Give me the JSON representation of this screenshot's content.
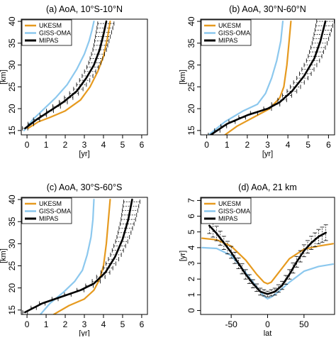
{
  "colors": {
    "UKESM": "#E69A1F",
    "GISS-OMA": "#8CC8EE",
    "MIPAS": "#000000"
  },
  "chart_data": [
    {
      "type": "line",
      "title": "(a) AoA, 10°S-10°N",
      "xlabel": "[yr]",
      "ylabel": "[km]",
      "xlim": [
        -0.3,
        6.3
      ],
      "ylim": [
        14,
        40.5
      ],
      "xticks": [
        "0",
        "1",
        "2",
        "3",
        "4",
        "5",
        "6"
      ],
      "yticks": [
        "15",
        "20",
        "25",
        "30",
        "35",
        "40"
      ],
      "legend": {
        "placement": "top-left",
        "entries": [
          "UKESM",
          "GISS-OMA",
          "MIPAS"
        ]
      },
      "series": [
        {
          "name": "UKESM",
          "x": [
            0.05,
            0.6,
            1.2,
            2.0,
            2.8,
            3.3,
            3.7,
            4.0,
            4.2,
            4.35
          ],
          "y": [
            15.5,
            17.0,
            18.0,
            19.5,
            22.0,
            25.0,
            28.5,
            32.0,
            36.0,
            40.0
          ]
        },
        {
          "name": "GISS-OMA",
          "x": [
            -0.15,
            0.3,
            0.9,
            1.5,
            2.1,
            2.6,
            3.0,
            3.25,
            3.4,
            3.5
          ],
          "y": [
            15.0,
            17.5,
            20.0,
            22.5,
            25.5,
            29.0,
            32.5,
            35.5,
            38.0,
            40.0
          ]
        },
        {
          "name": "MIPAS",
          "x": [
            -0.1,
            0.5,
            1.2,
            1.9,
            2.6,
            3.1,
            3.5,
            3.8,
            4.0,
            4.15
          ],
          "y": [
            15.5,
            17.5,
            19.5,
            21.5,
            24.0,
            27.0,
            30.0,
            33.5,
            37.0,
            40.0
          ]
        }
      ]
    },
    {
      "type": "line",
      "title": "(b) AoA, 30°N-60°N",
      "xlabel": "[yr]",
      "ylabel": "[km]",
      "xlim": [
        -0.3,
        6.3
      ],
      "ylim": [
        14,
        40.5
      ],
      "xticks": [
        "0",
        "1",
        "2",
        "3",
        "4",
        "5",
        "6"
      ],
      "yticks": [
        "15",
        "20",
        "25",
        "30",
        "35",
        "40"
      ],
      "legend": {
        "placement": "top-left",
        "entries": [
          "UKESM",
          "GISS-OMA",
          "MIPAS"
        ]
      },
      "series": [
        {
          "name": "UKESM",
          "x": [
            0.9,
            1.5,
            2.3,
            3.1,
            3.6,
            3.8,
            3.95,
            4.05,
            4.15
          ],
          "y": [
            14.0,
            16.0,
            18.0,
            20.0,
            22.5,
            25.0,
            30.0,
            35.0,
            40.0
          ]
        },
        {
          "name": "GISS-OMA",
          "x": [
            0.1,
            0.9,
            1.8,
            2.5,
            2.9,
            3.2,
            3.45,
            3.65,
            3.75
          ],
          "y": [
            14.0,
            17.0,
            19.5,
            21.0,
            23.5,
            27.0,
            31.0,
            35.5,
            40.0
          ]
        },
        {
          "name": "MIPAS",
          "x": [
            0.2,
            1.0,
            2.0,
            3.0,
            3.6,
            4.2,
            4.8,
            5.3,
            5.6,
            5.85
          ],
          "y": [
            14.0,
            16.5,
            18.5,
            20.0,
            21.5,
            24.0,
            27.5,
            31.5,
            35.5,
            40.0
          ]
        }
      ]
    },
    {
      "type": "line",
      "title": "(c) AoA, 30°S-60°S",
      "xlabel": "[yr]",
      "ylabel": "[km]",
      "xlim": [
        -0.3,
        6.3
      ],
      "ylim": [
        14,
        40.5
      ],
      "xticks": [
        "0",
        "1",
        "2",
        "3",
        "4",
        "5",
        "6"
      ],
      "yticks": [
        "15",
        "20",
        "25",
        "30",
        "35",
        "40"
      ],
      "legend": {
        "placement": "top-left",
        "entries": [
          "UKESM",
          "GISS-OMA",
          "MIPAS"
        ]
      },
      "series": [
        {
          "name": "UKESM",
          "x": [
            1.4,
            2.2,
            3.0,
            3.5,
            3.8,
            4.0,
            4.15,
            4.25,
            4.35
          ],
          "y": [
            14.0,
            16.0,
            17.5,
            19.5,
            22.0,
            25.0,
            30.0,
            35.0,
            40.0
          ]
        },
        {
          "name": "GISS-OMA",
          "x": [
            0.7,
            1.2,
            1.9,
            2.5,
            2.9,
            3.15,
            3.35,
            3.45,
            3.5
          ],
          "y": [
            14.0,
            16.5,
            19.0,
            21.5,
            24.0,
            27.5,
            31.5,
            35.5,
            40.0
          ]
        },
        {
          "name": "MIPAS",
          "x": [
            -0.1,
            0.8,
            1.8,
            2.8,
            3.5,
            4.1,
            4.6,
            5.0,
            5.3,
            5.5
          ],
          "y": [
            14.5,
            16.5,
            18.0,
            19.5,
            21.0,
            23.5,
            27.0,
            31.0,
            35.5,
            40.0
          ]
        }
      ]
    },
    {
      "type": "line",
      "title": "(d) AoA, 21 km",
      "xlabel": "lat",
      "ylabel": "[yr]",
      "xlim": [
        -92,
        92
      ],
      "ylim": [
        -0.25,
        7.2
      ],
      "xticks": [
        "-50",
        "0",
        "50"
      ],
      "yticks": [
        "0",
        "1",
        "2",
        "3",
        "4",
        "5",
        "6",
        "7"
      ],
      "legend": {
        "placement": "top-left",
        "entries": [
          "UKESM",
          "GISS-OMA",
          "MIPAS"
        ]
      },
      "series": [
        {
          "name": "UKESM",
          "x": [
            -90,
            -70,
            -50,
            -30,
            -15,
            -5,
            0,
            5,
            15,
            30,
            50,
            70,
            90
          ],
          "y": [
            4.6,
            4.5,
            4.1,
            3.2,
            2.3,
            1.8,
            1.7,
            1.8,
            2.4,
            3.3,
            3.9,
            4.1,
            4.25
          ]
        },
        {
          "name": "GISS-OMA",
          "x": [
            -90,
            -70,
            -50,
            -30,
            -15,
            -5,
            0,
            5,
            15,
            30,
            50,
            70,
            90
          ],
          "y": [
            4.0,
            3.95,
            3.5,
            2.4,
            1.5,
            0.9,
            0.75,
            0.85,
            1.2,
            1.8,
            2.5,
            2.8,
            2.95
          ]
        },
        {
          "name": "MIPAS",
          "x": [
            -80,
            -70,
            -60,
            -50,
            -40,
            -30,
            -20,
            -10,
            0,
            10,
            20,
            30,
            40,
            50,
            60,
            70,
            80
          ],
          "y": [
            5.4,
            4.9,
            4.3,
            3.7,
            3.0,
            2.3,
            1.7,
            1.2,
            1.05,
            1.2,
            1.6,
            2.3,
            3.1,
            3.8,
            4.3,
            4.7,
            4.95
          ]
        }
      ]
    }
  ]
}
